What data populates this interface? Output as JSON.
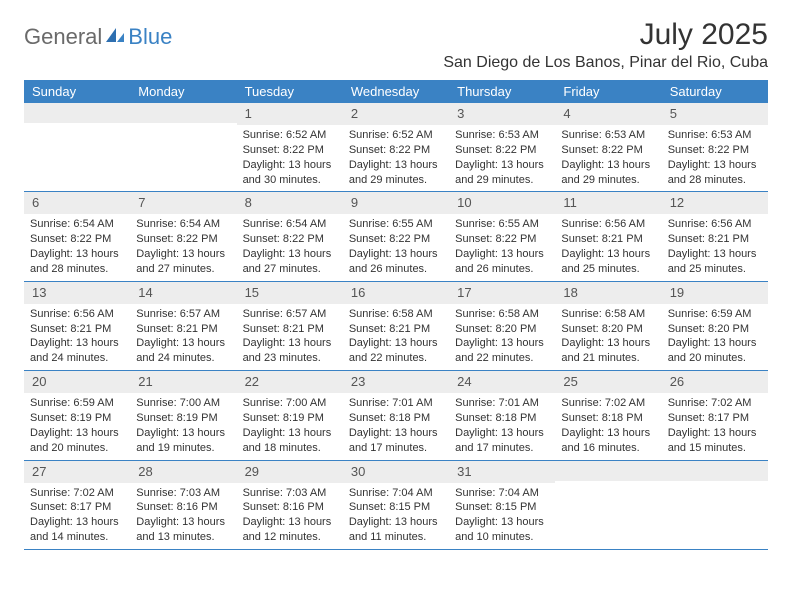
{
  "logo": {
    "text1": "General",
    "text2": "Blue"
  },
  "title": "July 2025",
  "location": "San Diego de Los Banos, Pinar del Rio, Cuba",
  "colors": {
    "header_bg": "#3a82c4",
    "header_text": "#ffffff",
    "daynum_bg": "#ededed",
    "daynum_text": "#555555",
    "body_text": "#333333",
    "border": "#3a82c4",
    "logo_gray": "#6a6a6a",
    "logo_blue": "#3a82c4",
    "page_bg": "#ffffff"
  },
  "typography": {
    "title_fontsize": 30,
    "location_fontsize": 16,
    "dayhead_fontsize": 13,
    "daynum_fontsize": 13,
    "cell_fontsize": 11
  },
  "dayheads": [
    "Sunday",
    "Monday",
    "Tuesday",
    "Wednesday",
    "Thursday",
    "Friday",
    "Saturday"
  ],
  "weeks": [
    [
      {
        "n": "",
        "sunrise": "",
        "sunset": "",
        "dl1": "",
        "dl2": ""
      },
      {
        "n": "",
        "sunrise": "",
        "sunset": "",
        "dl1": "",
        "dl2": ""
      },
      {
        "n": "1",
        "sunrise": "Sunrise: 6:52 AM",
        "sunset": "Sunset: 8:22 PM",
        "dl1": "Daylight: 13 hours",
        "dl2": "and 30 minutes."
      },
      {
        "n": "2",
        "sunrise": "Sunrise: 6:52 AM",
        "sunset": "Sunset: 8:22 PM",
        "dl1": "Daylight: 13 hours",
        "dl2": "and 29 minutes."
      },
      {
        "n": "3",
        "sunrise": "Sunrise: 6:53 AM",
        "sunset": "Sunset: 8:22 PM",
        "dl1": "Daylight: 13 hours",
        "dl2": "and 29 minutes."
      },
      {
        "n": "4",
        "sunrise": "Sunrise: 6:53 AM",
        "sunset": "Sunset: 8:22 PM",
        "dl1": "Daylight: 13 hours",
        "dl2": "and 29 minutes."
      },
      {
        "n": "5",
        "sunrise": "Sunrise: 6:53 AM",
        "sunset": "Sunset: 8:22 PM",
        "dl1": "Daylight: 13 hours",
        "dl2": "and 28 minutes."
      }
    ],
    [
      {
        "n": "6",
        "sunrise": "Sunrise: 6:54 AM",
        "sunset": "Sunset: 8:22 PM",
        "dl1": "Daylight: 13 hours",
        "dl2": "and 28 minutes."
      },
      {
        "n": "7",
        "sunrise": "Sunrise: 6:54 AM",
        "sunset": "Sunset: 8:22 PM",
        "dl1": "Daylight: 13 hours",
        "dl2": "and 27 minutes."
      },
      {
        "n": "8",
        "sunrise": "Sunrise: 6:54 AM",
        "sunset": "Sunset: 8:22 PM",
        "dl1": "Daylight: 13 hours",
        "dl2": "and 27 minutes."
      },
      {
        "n": "9",
        "sunrise": "Sunrise: 6:55 AM",
        "sunset": "Sunset: 8:22 PM",
        "dl1": "Daylight: 13 hours",
        "dl2": "and 26 minutes."
      },
      {
        "n": "10",
        "sunrise": "Sunrise: 6:55 AM",
        "sunset": "Sunset: 8:22 PM",
        "dl1": "Daylight: 13 hours",
        "dl2": "and 26 minutes."
      },
      {
        "n": "11",
        "sunrise": "Sunrise: 6:56 AM",
        "sunset": "Sunset: 8:21 PM",
        "dl1": "Daylight: 13 hours",
        "dl2": "and 25 minutes."
      },
      {
        "n": "12",
        "sunrise": "Sunrise: 6:56 AM",
        "sunset": "Sunset: 8:21 PM",
        "dl1": "Daylight: 13 hours",
        "dl2": "and 25 minutes."
      }
    ],
    [
      {
        "n": "13",
        "sunrise": "Sunrise: 6:56 AM",
        "sunset": "Sunset: 8:21 PM",
        "dl1": "Daylight: 13 hours",
        "dl2": "and 24 minutes."
      },
      {
        "n": "14",
        "sunrise": "Sunrise: 6:57 AM",
        "sunset": "Sunset: 8:21 PM",
        "dl1": "Daylight: 13 hours",
        "dl2": "and 24 minutes."
      },
      {
        "n": "15",
        "sunrise": "Sunrise: 6:57 AM",
        "sunset": "Sunset: 8:21 PM",
        "dl1": "Daylight: 13 hours",
        "dl2": "and 23 minutes."
      },
      {
        "n": "16",
        "sunrise": "Sunrise: 6:58 AM",
        "sunset": "Sunset: 8:21 PM",
        "dl1": "Daylight: 13 hours",
        "dl2": "and 22 minutes."
      },
      {
        "n": "17",
        "sunrise": "Sunrise: 6:58 AM",
        "sunset": "Sunset: 8:20 PM",
        "dl1": "Daylight: 13 hours",
        "dl2": "and 22 minutes."
      },
      {
        "n": "18",
        "sunrise": "Sunrise: 6:58 AM",
        "sunset": "Sunset: 8:20 PM",
        "dl1": "Daylight: 13 hours",
        "dl2": "and 21 minutes."
      },
      {
        "n": "19",
        "sunrise": "Sunrise: 6:59 AM",
        "sunset": "Sunset: 8:20 PM",
        "dl1": "Daylight: 13 hours",
        "dl2": "and 20 minutes."
      }
    ],
    [
      {
        "n": "20",
        "sunrise": "Sunrise: 6:59 AM",
        "sunset": "Sunset: 8:19 PM",
        "dl1": "Daylight: 13 hours",
        "dl2": "and 20 minutes."
      },
      {
        "n": "21",
        "sunrise": "Sunrise: 7:00 AM",
        "sunset": "Sunset: 8:19 PM",
        "dl1": "Daylight: 13 hours",
        "dl2": "and 19 minutes."
      },
      {
        "n": "22",
        "sunrise": "Sunrise: 7:00 AM",
        "sunset": "Sunset: 8:19 PM",
        "dl1": "Daylight: 13 hours",
        "dl2": "and 18 minutes."
      },
      {
        "n": "23",
        "sunrise": "Sunrise: 7:01 AM",
        "sunset": "Sunset: 8:18 PM",
        "dl1": "Daylight: 13 hours",
        "dl2": "and 17 minutes."
      },
      {
        "n": "24",
        "sunrise": "Sunrise: 7:01 AM",
        "sunset": "Sunset: 8:18 PM",
        "dl1": "Daylight: 13 hours",
        "dl2": "and 17 minutes."
      },
      {
        "n": "25",
        "sunrise": "Sunrise: 7:02 AM",
        "sunset": "Sunset: 8:18 PM",
        "dl1": "Daylight: 13 hours",
        "dl2": "and 16 minutes."
      },
      {
        "n": "26",
        "sunrise": "Sunrise: 7:02 AM",
        "sunset": "Sunset: 8:17 PM",
        "dl1": "Daylight: 13 hours",
        "dl2": "and 15 minutes."
      }
    ],
    [
      {
        "n": "27",
        "sunrise": "Sunrise: 7:02 AM",
        "sunset": "Sunset: 8:17 PM",
        "dl1": "Daylight: 13 hours",
        "dl2": "and 14 minutes."
      },
      {
        "n": "28",
        "sunrise": "Sunrise: 7:03 AM",
        "sunset": "Sunset: 8:16 PM",
        "dl1": "Daylight: 13 hours",
        "dl2": "and 13 minutes."
      },
      {
        "n": "29",
        "sunrise": "Sunrise: 7:03 AM",
        "sunset": "Sunset: 8:16 PM",
        "dl1": "Daylight: 13 hours",
        "dl2": "and 12 minutes."
      },
      {
        "n": "30",
        "sunrise": "Sunrise: 7:04 AM",
        "sunset": "Sunset: 8:15 PM",
        "dl1": "Daylight: 13 hours",
        "dl2": "and 11 minutes."
      },
      {
        "n": "31",
        "sunrise": "Sunrise: 7:04 AM",
        "sunset": "Sunset: 8:15 PM",
        "dl1": "Daylight: 13 hours",
        "dl2": "and 10 minutes."
      },
      {
        "n": "",
        "sunrise": "",
        "sunset": "",
        "dl1": "",
        "dl2": ""
      },
      {
        "n": "",
        "sunrise": "",
        "sunset": "",
        "dl1": "",
        "dl2": ""
      }
    ]
  ]
}
